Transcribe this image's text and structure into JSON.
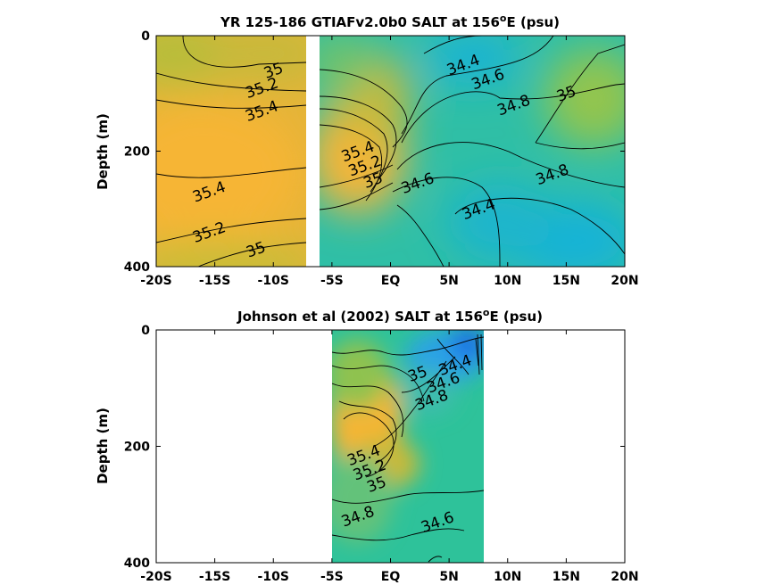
{
  "figure": {
    "background": "#ffffff"
  },
  "chart_data": [
    {
      "type": "heatmap",
      "title": {
        "main": "YR 125-186 GTIAFv2.0b0 SALT at 156",
        "sup": "o",
        "tail": "E (psu)"
      },
      "ylabel": "Depth (m)",
      "xlabel": "",
      "x_ticks": [
        "-20S",
        "-15S",
        "-10S",
        "-5S",
        "EQ",
        "5N",
        "10N",
        "15N",
        "20N"
      ],
      "x_tick_values": [
        -20,
        -15,
        -10,
        -5,
        0,
        5,
        10,
        15,
        20
      ],
      "y_ticks": [
        "0",
        "200",
        "400"
      ],
      "y_tick_values": [
        0,
        200,
        400
      ],
      "xlim": [
        -20,
        20
      ],
      "ylim": [
        400,
        0
      ],
      "data_gap_lat": [
        -7.8,
        -6.8
      ],
      "colors": {
        "high": "#f9b434",
        "mid": "#2ec29a",
        "low": "#16b3d6"
      },
      "contour_labels": [
        {
          "text": "35",
          "lat": -10.0,
          "depth": 60
        },
        {
          "text": "35.2",
          "lat": -11.0,
          "depth": 90
        },
        {
          "text": "35.4",
          "lat": -11.0,
          "depth": 130
        },
        {
          "text": "35.4",
          "lat": -15.5,
          "depth": 270
        },
        {
          "text": "35.2",
          "lat": -15.5,
          "depth": 340
        },
        {
          "text": "35",
          "lat": -11.5,
          "depth": 370
        },
        {
          "text": "34.4",
          "lat": 6.2,
          "depth": 50
        },
        {
          "text": "34.6",
          "lat": 8.3,
          "depth": 75
        },
        {
          "text": "34.8",
          "lat": 10.5,
          "depth": 120
        },
        {
          "text": "35",
          "lat": 15.0,
          "depth": 100
        },
        {
          "text": "35.4",
          "lat": -2.8,
          "depth": 200
        },
        {
          "text": "35.2",
          "lat": -2.2,
          "depth": 225
        },
        {
          "text": "35",
          "lat": -1.5,
          "depth": 250
        },
        {
          "text": "34.6",
          "lat": 2.3,
          "depth": 255
        },
        {
          "text": "34.8",
          "lat": 13.8,
          "depth": 240
        },
        {
          "text": "34.4",
          "lat": 7.5,
          "depth": 300
        }
      ]
    },
    {
      "type": "heatmap",
      "title": {
        "main": "Johnson et al (2002) SALT at 156",
        "sup": "o",
        "tail": "E (psu)"
      },
      "ylabel": "Depth (m)",
      "xlabel": "",
      "x_ticks": [
        "-20S",
        "-15S",
        "-10S",
        "-5S",
        "EQ",
        "5N",
        "10N",
        "15N",
        "20N"
      ],
      "x_tick_values": [
        -20,
        -15,
        -10,
        -5,
        0,
        5,
        10,
        15,
        20
      ],
      "y_ticks": [
        "0",
        "200",
        "400"
      ],
      "y_tick_values": [
        0,
        200,
        400
      ],
      "xlim": [
        -20,
        20
      ],
      "ylim": [
        400,
        0
      ],
      "data_extent_lat": [
        -5,
        8
      ],
      "colors": {
        "high": "#f9b434",
        "mid": "#2ec29a",
        "low": "#2aa3e6"
      },
      "contour_labels": [
        {
          "text": "34.4",
          "lat": 5.5,
          "depth": 60
        },
        {
          "text": "34.6",
          "lat": 4.5,
          "depth": 90
        },
        {
          "text": "34.8",
          "lat": 3.5,
          "depth": 120
        },
        {
          "text": "35",
          "lat": 2.3,
          "depth": 75
        },
        {
          "text": "35.4",
          "lat": -2.3,
          "depth": 215
        },
        {
          "text": "35.2",
          "lat": -1.8,
          "depth": 240
        },
        {
          "text": "35",
          "lat": -1.2,
          "depth": 265
        },
        {
          "text": "34.8",
          "lat": -2.8,
          "depth": 320
        },
        {
          "text": "34.6",
          "lat": 4.0,
          "depth": 330
        }
      ]
    }
  ]
}
